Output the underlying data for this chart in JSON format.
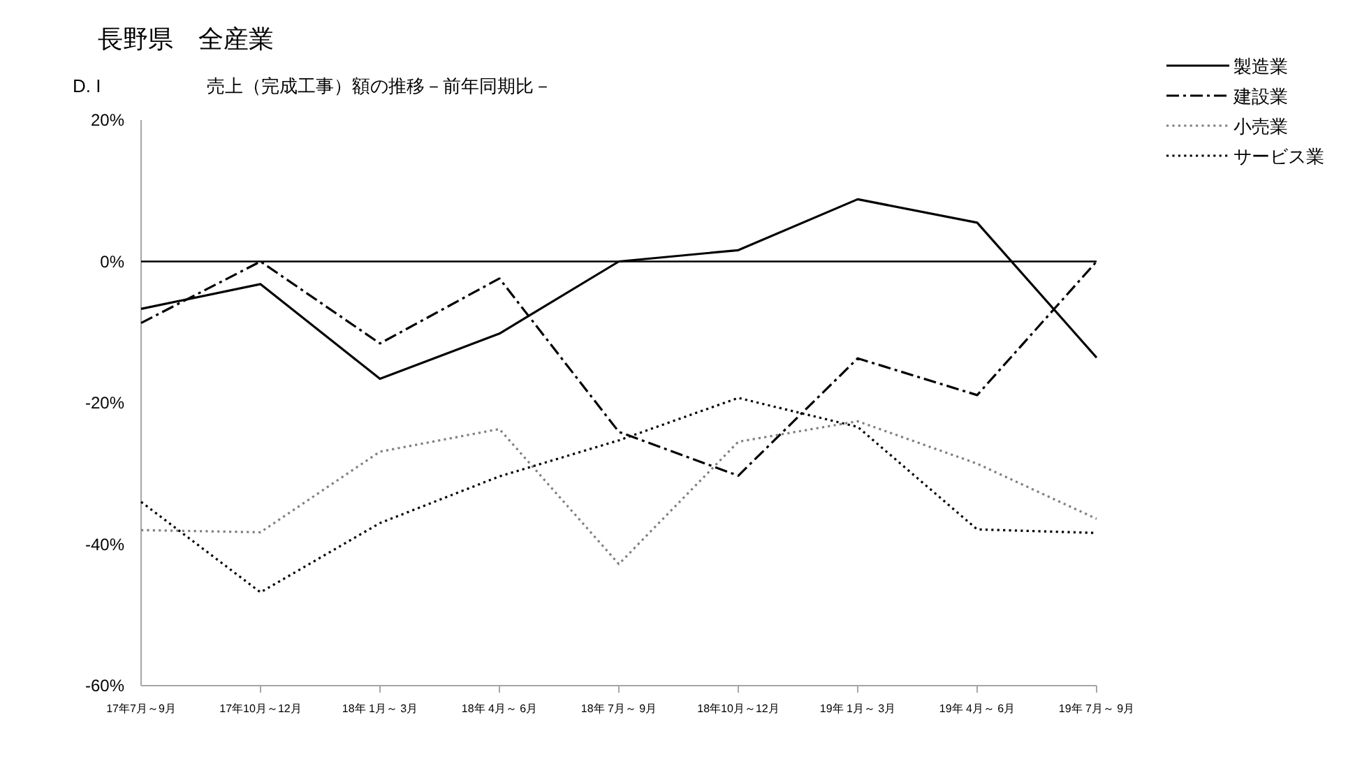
{
  "chart_data": {
    "type": "line",
    "title": "長野県　全産業",
    "subtitle": "売上（完成工事）額の推移－前年同期比－",
    "ylabel": "D. I",
    "categories": [
      "17年7月～9月",
      "17年10月～12月",
      "18年 1月～ 3月",
      "18年 4月～ 6月",
      "18年 7月～ 9月",
      "18年10月～12月",
      "19年 1月～ 3月",
      "19年 4月～ 6月",
      "19年 7月～ 9月"
    ],
    "series": [
      {
        "name": "製造業",
        "color": "#000000",
        "line_style": "solid",
        "values": [
          -6.7,
          -3.2,
          -16.6,
          -10.2,
          0,
          1.6,
          8.8,
          5.5,
          -13.6
        ]
      },
      {
        "name": "建設業",
        "color": "#000000",
        "line_style": "dashdot",
        "values": [
          -8.7,
          0,
          -11.6,
          -2.4,
          -24.1,
          -30.3,
          -13.7,
          -18.9,
          0
        ]
      },
      {
        "name": "小売業",
        "color": "#808080",
        "line_style": "dotted",
        "values": [
          -38,
          -38.3,
          -26.9,
          -23.7,
          -42.8,
          -25.5,
          -22.6,
          -28.6,
          -36.4
        ]
      },
      {
        "name": "サービス業",
        "color": "#000000",
        "line_style": "dotted",
        "values": [
          -34,
          -46.8,
          -37,
          -30.4,
          -25.3,
          -19.3,
          -23.4,
          -37.9,
          -38.4
        ]
      }
    ],
    "ylim": [
      -60,
      20
    ],
    "yticks": [
      {
        "value": 20,
        "label": "20%"
      },
      {
        "value": 0,
        "label": "0%"
      },
      {
        "value": -20,
        "label": "-20%"
      },
      {
        "value": -40,
        "label": "-40%"
      },
      {
        "value": -60,
        "label": "-60%"
      }
    ],
    "ref_lines": [
      {
        "axis": "y",
        "value": 0,
        "color": "#000000"
      }
    ],
    "legend": "top right"
  }
}
